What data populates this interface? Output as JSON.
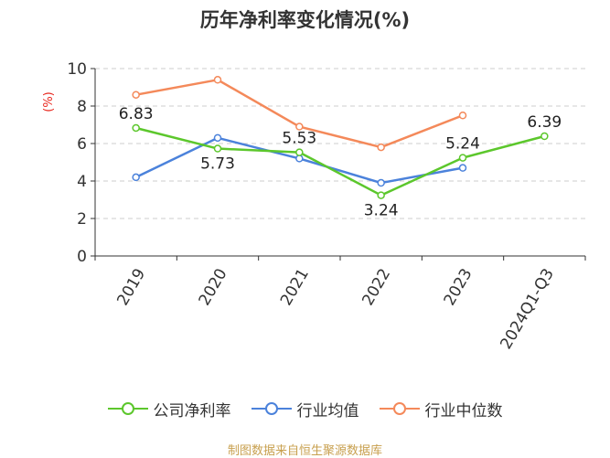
{
  "chart_data": {
    "type": "line",
    "title": "历年净利率变化情况(%)",
    "ylabel": "(%)",
    "categories": [
      "2019",
      "2020",
      "2021",
      "2022",
      "2023",
      "2024Q1-Q3"
    ],
    "ylim": [
      0,
      10
    ],
    "yticks": [
      0,
      2,
      4,
      6,
      8,
      10
    ],
    "grid": "horizontal-dashed",
    "legend_position": "bottom",
    "series": [
      {
        "name": "公司净利率",
        "color": "#5cc72c",
        "values": [
          6.83,
          5.73,
          5.53,
          3.24,
          5.24,
          6.39
        ],
        "labels": [
          "6.83",
          "5.73",
          "5.53",
          "3.24",
          "5.24",
          "6.39"
        ]
      },
      {
        "name": "行业均值",
        "color": "#4b82db",
        "values": [
          4.2,
          6.3,
          5.2,
          3.9,
          4.7,
          null
        ]
      },
      {
        "name": "行业中位数",
        "color": "#f4895a",
        "values": [
          8.6,
          9.4,
          6.9,
          5.8,
          7.5,
          null
        ]
      }
    ]
  },
  "source_text": "制图数据来自恒生聚源数据库"
}
